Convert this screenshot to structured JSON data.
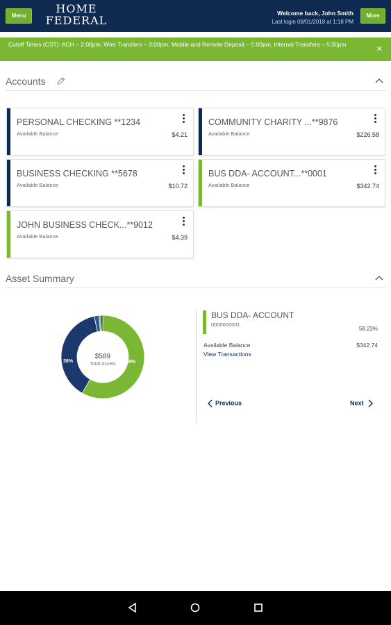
{
  "header": {
    "menu_label": "Menu",
    "more_label": "More",
    "logo_line1": "HOME",
    "logo_line2": "FEDERAL",
    "welcome": "Welcome back, John Smith",
    "last_login": "Last login 08/01/2018 at 1:18 PM",
    "background": "#0e2a50",
    "accent": "#70b02a"
  },
  "banner": {
    "text": "Cutoff Times (CST): ACH – 2:00pm, Wire Transfers – 3:00pm, Mobile and Remote Deposit – 5:00pm, Internal Transfers – 5:30pm",
    "close_icon": "close-icon"
  },
  "accounts": {
    "title": "Accounts",
    "edit_icon": "pencil-icon",
    "collapse_icon": "chevron-up-icon",
    "available_label": "Available Balance",
    "cards": [
      {
        "name": "PERSONAL CHECKING **1234",
        "balance": "$4.21",
        "color": "#0e2a50"
      },
      {
        "name": "COMMUNITY CHARITY ...**9876",
        "balance": "$226.58",
        "color": "#0e2a50"
      },
      {
        "name": "BUSINESS CHECKING **5678",
        "balance": "$10.72",
        "color": "#0e2a50"
      },
      {
        "name": "BUS DDA- ACCOUNT...**0001",
        "balance": "$342.74",
        "color": "#7ab733"
      },
      {
        "name": "JOHN BUSINESS CHECK...**9012",
        "balance": "$4.39",
        "color": "#7ab733"
      }
    ]
  },
  "asset_summary": {
    "title": "Asset Summary",
    "collapse_icon": "chevron-up-icon",
    "total": "$589",
    "total_label": "Total Assets",
    "slices": [
      {
        "label": "58%",
        "value": 58.23,
        "color": "#7ab733"
      },
      {
        "label": "38%",
        "value": 38.47,
        "color": "#1b3a6b"
      },
      {
        "label": "",
        "value": 1.82,
        "color": "#2d5a8c"
      },
      {
        "label": "",
        "value": 0.71,
        "color": "#7ab733"
      },
      {
        "label": "",
        "value": 0.77,
        "color": "#0e2a50"
      }
    ],
    "detail": {
      "name": "BUS DDA- ACCOUNT",
      "number": "0000000001",
      "percent": "58.23%",
      "available_label": "Available Balance",
      "available_value": "$342.74",
      "link": "View Transactions"
    },
    "prev_label": "Previous",
    "next_label": "Next"
  },
  "system_nav": {
    "back_icon": "back-icon",
    "home_icon": "home-icon",
    "recents_icon": "recents-icon"
  }
}
